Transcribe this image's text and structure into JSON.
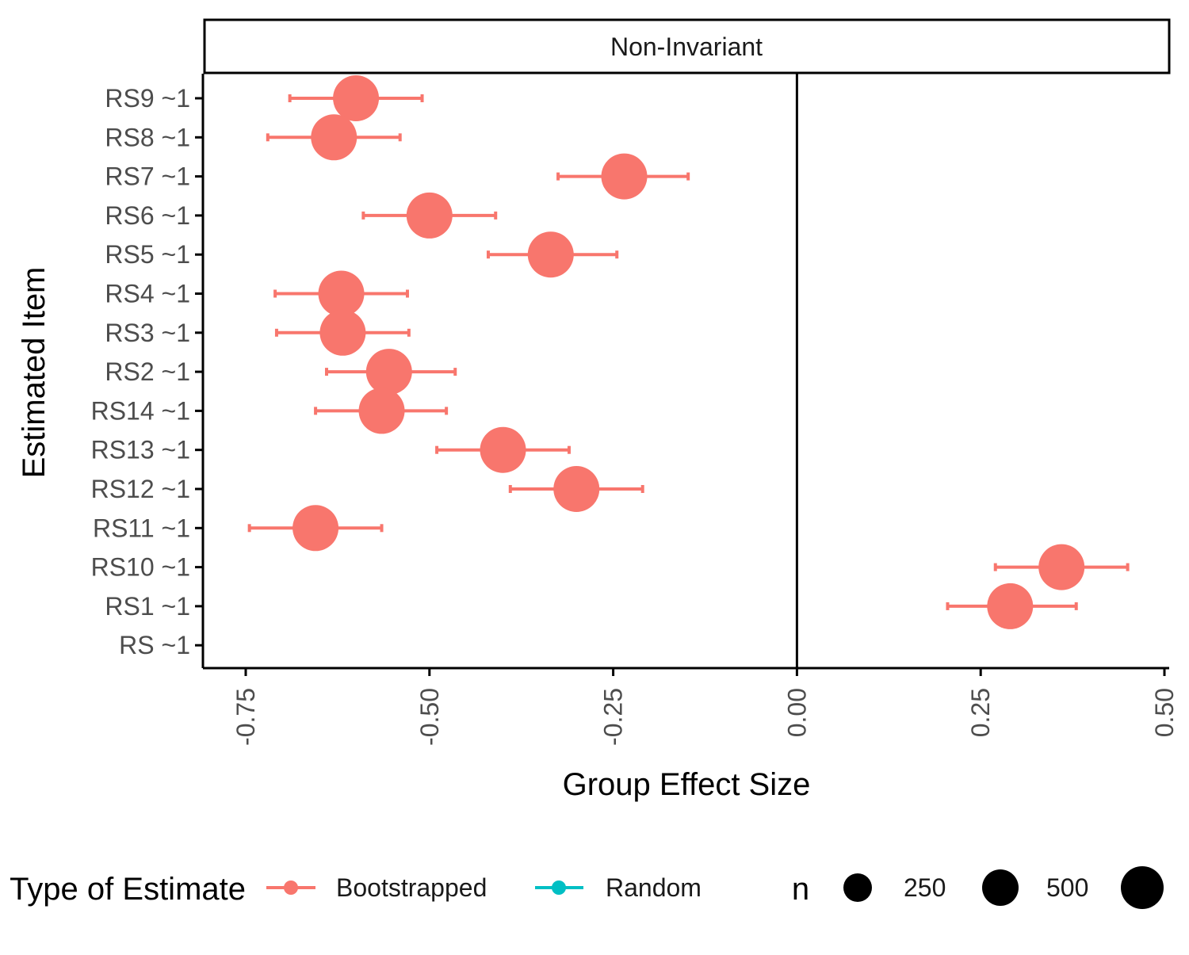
{
  "chart_data": {
    "type": "scatter",
    "facet_title": "Non-Invariant",
    "xlabel": "Group Effect Size",
    "ylabel": "Estimated Item",
    "xlim": [
      -0.8,
      0.5
    ],
    "x_ticks": [
      "-0.75",
      "-0.50",
      "-0.25",
      "0.00",
      "0.25",
      "0.50"
    ],
    "x_tick_values": [
      -0.75,
      -0.5,
      -0.25,
      0.0,
      0.25,
      0.5
    ],
    "reference_line_x": 0,
    "categories": [
      "RS9 ~1",
      "RS8 ~1",
      "RS7 ~1",
      "RS6 ~1",
      "RS5 ~1",
      "RS4 ~1",
      "RS3 ~1",
      "RS2 ~1",
      "RS14 ~1",
      "RS13 ~1",
      "RS12 ~1",
      "RS11 ~1",
      "RS10 ~1",
      "RS1 ~1",
      "RS ~1"
    ],
    "series": [
      {
        "name": "Bootstrapped",
        "color": "#F8766D",
        "points": [
          {
            "item": "RS9 ~1",
            "estimate": -0.6,
            "lower": -0.69,
            "upper": -0.51
          },
          {
            "item": "RS8 ~1",
            "estimate": -0.63,
            "lower": -0.72,
            "upper": -0.54
          },
          {
            "item": "RS7 ~1",
            "estimate": -0.235,
            "lower": -0.325,
            "upper": -0.148
          },
          {
            "item": "RS6 ~1",
            "estimate": -0.5,
            "lower": -0.59,
            "upper": -0.41
          },
          {
            "item": "RS5 ~1",
            "estimate": -0.335,
            "lower": -0.42,
            "upper": -0.245
          },
          {
            "item": "RS4 ~1",
            "estimate": -0.62,
            "lower": -0.71,
            "upper": -0.53
          },
          {
            "item": "RS3 ~1",
            "estimate": -0.618,
            "lower": -0.708,
            "upper": -0.528
          },
          {
            "item": "RS2 ~1",
            "estimate": -0.555,
            "lower": -0.64,
            "upper": -0.465
          },
          {
            "item": "RS14 ~1",
            "estimate": -0.565,
            "lower": -0.655,
            "upper": -0.477
          },
          {
            "item": "RS13 ~1",
            "estimate": -0.4,
            "lower": -0.49,
            "upper": -0.31
          },
          {
            "item": "RS12 ~1",
            "estimate": -0.3,
            "lower": -0.39,
            "upper": -0.21
          },
          {
            "item": "RS11 ~1",
            "estimate": -0.655,
            "lower": -0.745,
            "upper": -0.565
          },
          {
            "item": "RS10 ~1",
            "estimate": 0.36,
            "lower": 0.27,
            "upper": 0.45
          },
          {
            "item": "RS1 ~1",
            "estimate": 0.29,
            "lower": 0.205,
            "upper": 0.38
          }
        ]
      },
      {
        "name": "Random",
        "color": "#00BFC4",
        "points": []
      }
    ],
    "legend": {
      "position": "bottom",
      "color_title": "Type of Estimate",
      "color_entries": [
        "Bootstrapped",
        "Random"
      ],
      "size_title": "n",
      "size_entries": [
        "",
        "250",
        "500",
        ""
      ]
    },
    "grid": false
  }
}
